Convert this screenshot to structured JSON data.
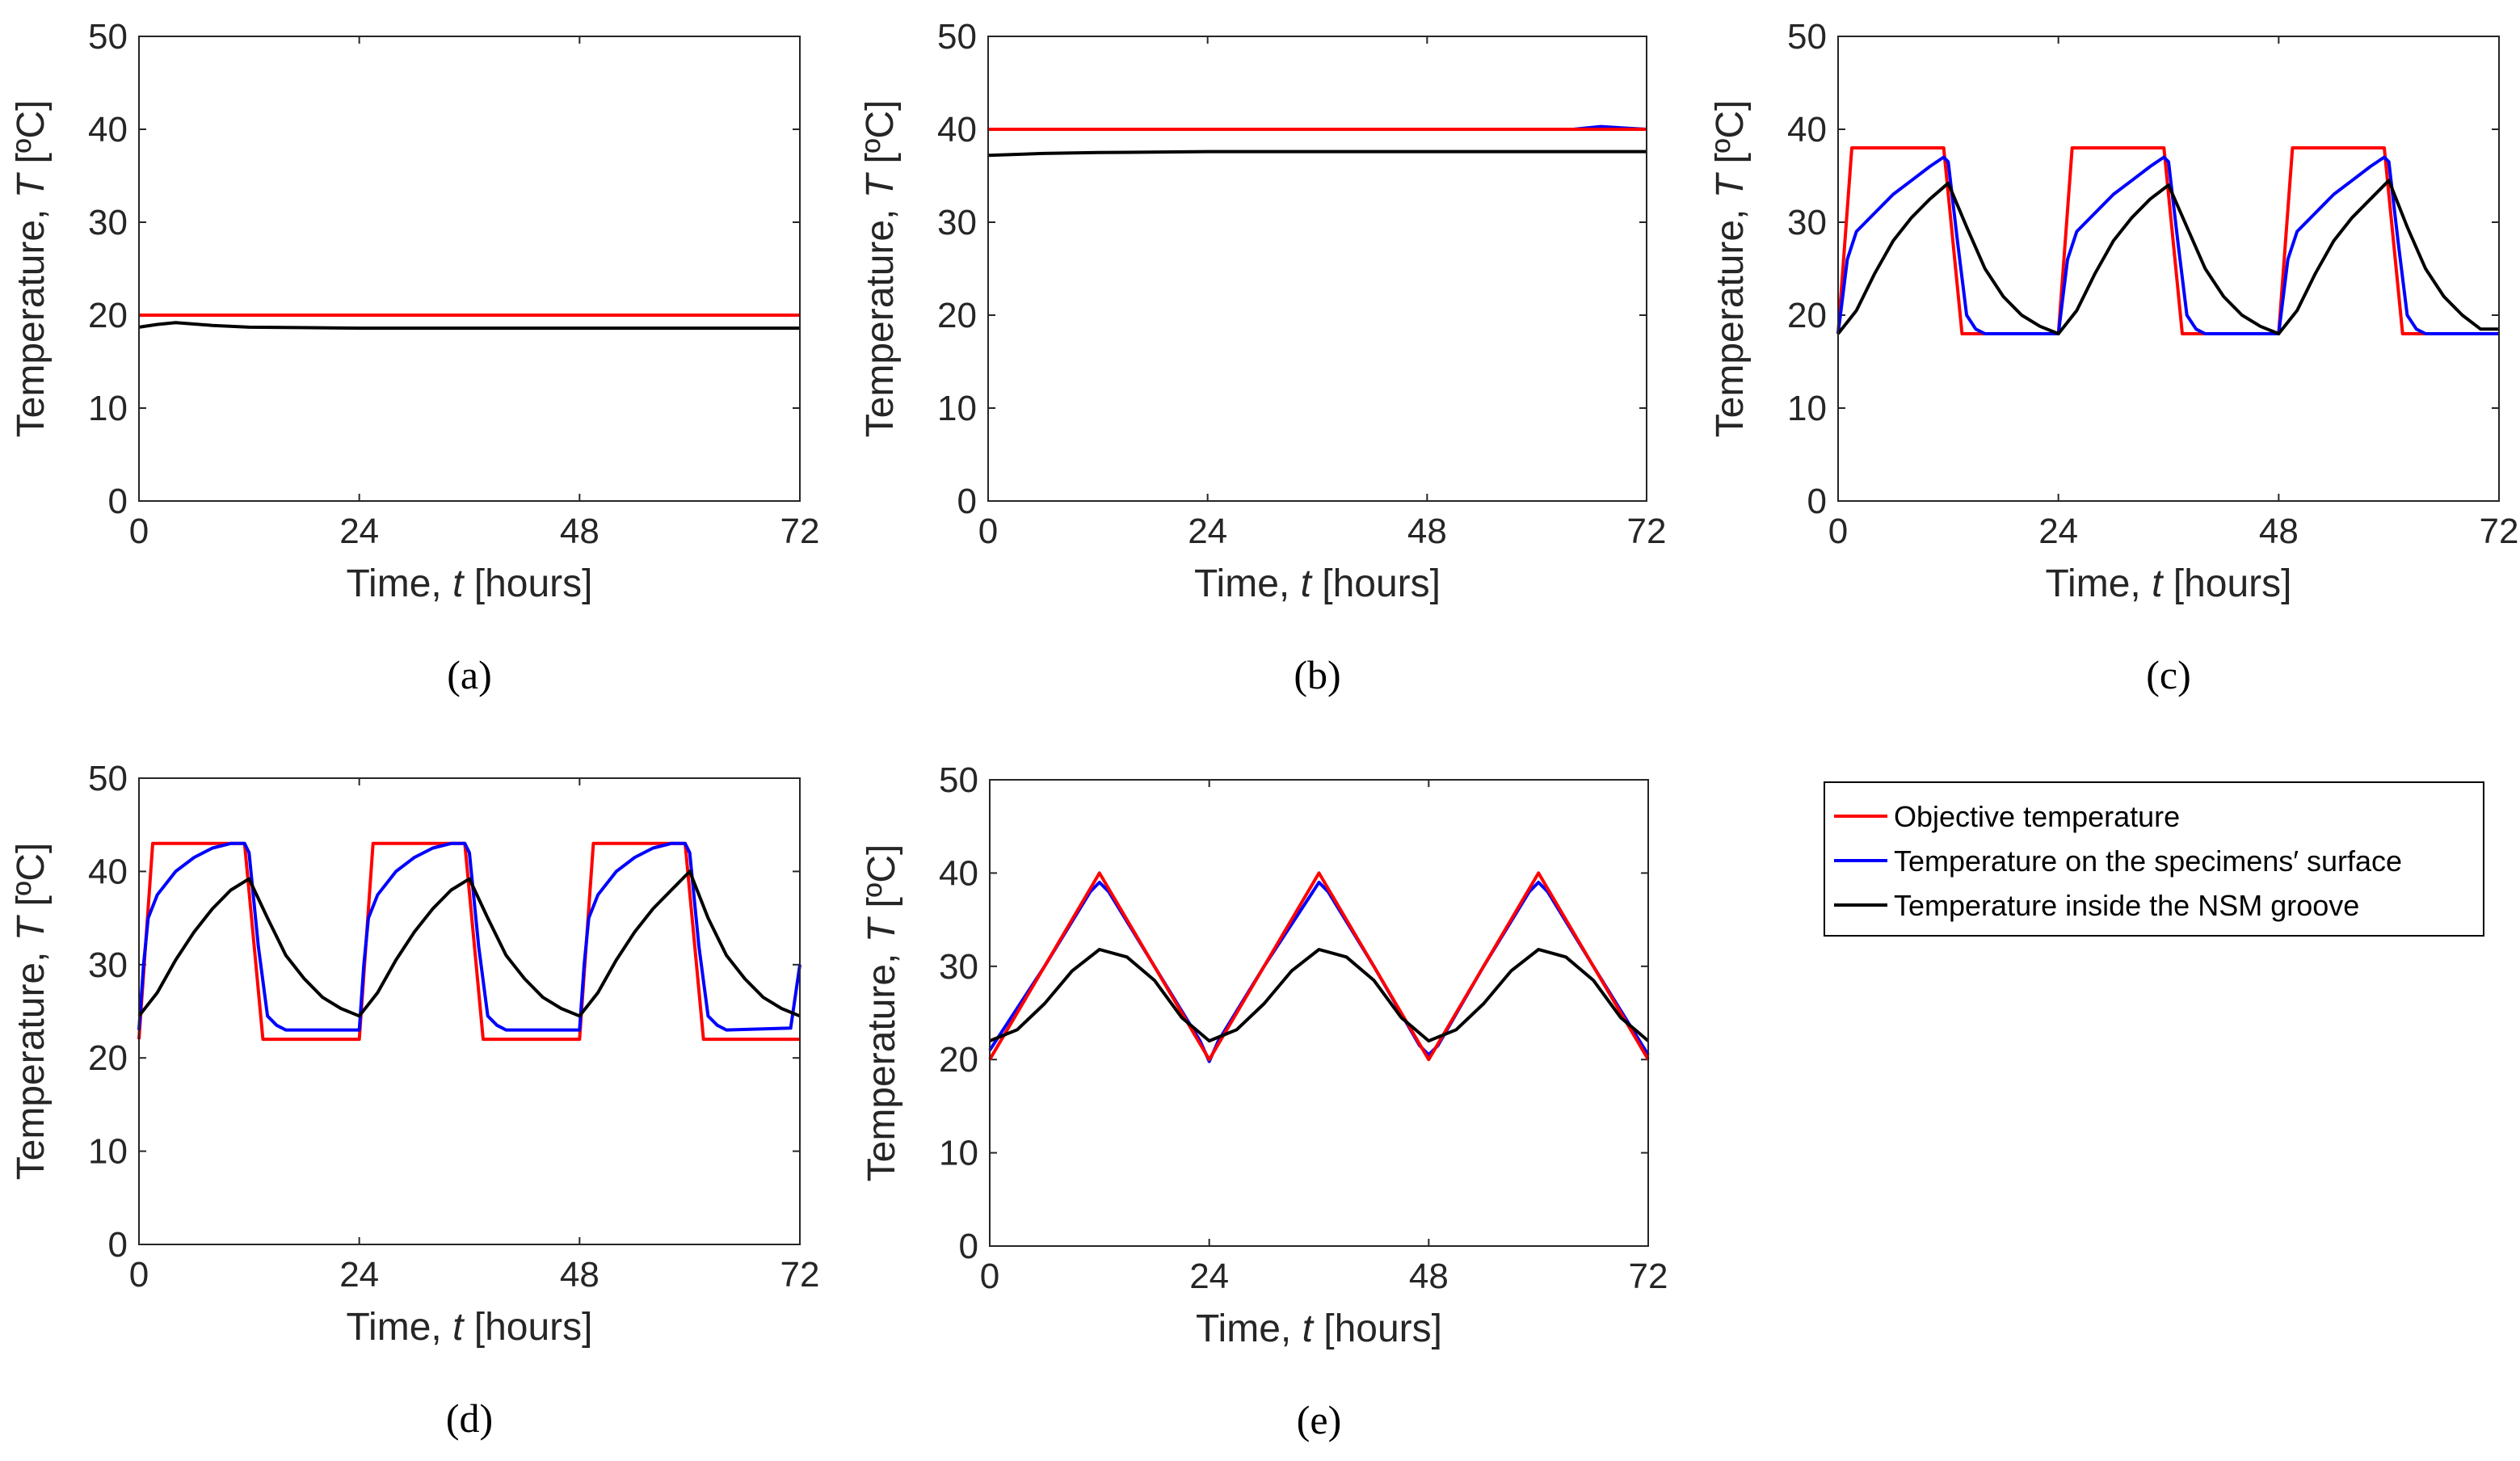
{
  "legend": {
    "items": [
      {
        "label": "Objective temperature",
        "color": "#ff0000"
      },
      {
        "label": "Temperature on the specimens′ surface",
        "color": "#0000ff"
      },
      {
        "label": "Temperature inside the NSM groove",
        "color": "#000000"
      }
    ]
  },
  "chart_data": [
    {
      "panel": "(a)",
      "type": "line",
      "xlabel": "Time, t [hours]",
      "ylabel": "Temperature, T [ºC]",
      "xlim": [
        0,
        72
      ],
      "ylim": [
        0,
        50
      ],
      "xticks": [
        0,
        24,
        48,
        72
      ],
      "yticks": [
        0,
        10,
        20,
        30,
        40,
        50
      ],
      "series": [
        {
          "name": "Temperature on the specimens′ surface",
          "color": "#0000ff",
          "x": [
            0,
            72
          ],
          "y": [
            20,
            20
          ]
        },
        {
          "name": "Objective temperature",
          "color": "#ff0000",
          "x": [
            0,
            72
          ],
          "y": [
            20,
            20
          ]
        },
        {
          "name": "Temperature inside the NSM groove",
          "color": "#000000",
          "x": [
            0,
            2,
            4,
            8,
            12,
            24,
            48,
            72
          ],
          "y": [
            18.7,
            19.0,
            19.2,
            18.9,
            18.7,
            18.6,
            18.6,
            18.6
          ]
        }
      ]
    },
    {
      "panel": "(b)",
      "type": "line",
      "xlabel": "Time, t [hours]",
      "ylabel": "Temperature, T [ºC]",
      "xlim": [
        0,
        72
      ],
      "ylim": [
        0,
        50
      ],
      "xticks": [
        0,
        24,
        48,
        72
      ],
      "yticks": [
        0,
        10,
        20,
        30,
        40,
        50
      ],
      "series": [
        {
          "name": "Temperature on the specimens′ surface",
          "color": "#0000ff",
          "x": [
            0,
            24,
            48,
            64,
            67,
            70,
            72
          ],
          "y": [
            40,
            40,
            40,
            40,
            40.3,
            40.1,
            40
          ]
        },
        {
          "name": "Objective temperature",
          "color": "#ff0000",
          "x": [
            0,
            72
          ],
          "y": [
            40,
            40
          ]
        },
        {
          "name": "Temperature inside the NSM groove",
          "color": "#000000",
          "x": [
            0,
            6,
            12,
            24,
            36,
            48,
            60,
            72
          ],
          "y": [
            37.2,
            37.4,
            37.5,
            37.6,
            37.6,
            37.6,
            37.6,
            37.6
          ]
        }
      ]
    },
    {
      "panel": "(c)",
      "type": "line",
      "xlabel": "Time, t [hours]",
      "ylabel": "Temperature, T [ºC]",
      "xlim": [
        0,
        72
      ],
      "ylim": [
        0,
        50
      ],
      "xticks": [
        0,
        24,
        48,
        72
      ],
      "yticks": [
        0,
        10,
        20,
        30,
        40,
        50
      ],
      "series": [
        {
          "name": "Objective temperature",
          "color": "#ff0000",
          "x": [
            0,
            1.5,
            11.5,
            13.5,
            24,
            25.5,
            35.5,
            37.5,
            48,
            49.5,
            59.5,
            61.5,
            72
          ],
          "y": [
            18,
            38,
            38,
            18,
            18,
            38,
            38,
            18,
            18,
            38,
            38,
            18,
            18
          ]
        },
        {
          "name": "Temperature on the specimens′ surface",
          "color": "#0000ff",
          "x": [
            0,
            0.5,
            1,
            2,
            4,
            6,
            8,
            10,
            11.5,
            12,
            13,
            14,
            15,
            16,
            24,
            24.5,
            25,
            26,
            28,
            30,
            32,
            34,
            35.5,
            36,
            37,
            38,
            39,
            40,
            48,
            48.5,
            49,
            50,
            52,
            54,
            56,
            58,
            59.5,
            60,
            61,
            62,
            63,
            64,
            72
          ],
          "y": [
            18,
            22,
            26,
            29,
            31,
            33,
            34.5,
            36,
            37,
            36.5,
            28,
            20,
            18.5,
            18,
            18,
            22,
            26,
            29,
            31,
            33,
            34.5,
            36,
            37,
            36.5,
            28,
            20,
            18.5,
            18,
            18,
            22,
            26,
            29,
            31,
            33,
            34.5,
            36,
            37,
            36.5,
            28,
            20,
            18.5,
            18,
            18
          ]
        },
        {
          "name": "Temperature inside the NSM groove",
          "color": "#000000",
          "x": [
            0,
            2,
            4,
            6,
            8,
            10,
            12,
            14,
            16,
            18,
            20,
            22,
            24,
            26,
            28,
            30,
            32,
            34,
            36,
            38,
            40,
            42,
            44,
            46,
            48,
            50,
            52,
            54,
            56,
            58,
            60,
            62,
            64,
            66,
            68,
            70,
            72
          ],
          "y": [
            18,
            20.5,
            24.5,
            28,
            30.5,
            32.5,
            34.2,
            29.5,
            25,
            22,
            20,
            18.8,
            18,
            20.5,
            24.5,
            28,
            30.5,
            32.5,
            34,
            29.5,
            25,
            22,
            20,
            18.8,
            18,
            20.5,
            24.5,
            28,
            30.5,
            32.5,
            34.5,
            29.5,
            25,
            22,
            20,
            18.5,
            18.5
          ]
        }
      ]
    },
    {
      "panel": "(d)",
      "type": "line",
      "xlabel": "Time, t [hours]",
      "ylabel": "Temperature, T [ºC]",
      "xlim": [
        0,
        72
      ],
      "ylim": [
        0,
        50
      ],
      "xticks": [
        0,
        24,
        48,
        72
      ],
      "yticks": [
        0,
        10,
        20,
        30,
        40,
        50
      ],
      "series": [
        {
          "name": "Objective temperature",
          "color": "#ff0000",
          "x": [
            0,
            1.5,
            11.5,
            13.5,
            24,
            25.5,
            35.5,
            37.5,
            48,
            49.5,
            59.5,
            61.5,
            72
          ],
          "y": [
            22,
            43,
            43,
            22,
            22,
            43,
            43,
            22,
            22,
            43,
            43,
            22,
            22
          ]
        },
        {
          "name": "Temperature on the specimens′ surface",
          "color": "#0000ff",
          "x": [
            0,
            0.5,
            1,
            2,
            4,
            6,
            8,
            10,
            11.5,
            12,
            13,
            14,
            15,
            16,
            24,
            24.5,
            25,
            26,
            28,
            30,
            32,
            34,
            35.5,
            36,
            37,
            38,
            39,
            40,
            48,
            48.5,
            49,
            50,
            52,
            54,
            56,
            58,
            59.5,
            60,
            61,
            62,
            63,
            64,
            71,
            72
          ],
          "y": [
            23,
            30,
            35,
            37.5,
            40,
            41.5,
            42.5,
            43,
            43,
            42,
            32,
            24.5,
            23.5,
            23,
            23,
            30,
            35,
            37.5,
            40,
            41.5,
            42.5,
            43,
            43,
            42,
            32,
            24.5,
            23.5,
            23,
            23,
            30,
            35,
            37.5,
            40,
            41.5,
            42.5,
            43,
            43,
            42,
            32,
            24.5,
            23.5,
            23,
            23.2,
            30
          ]
        },
        {
          "name": "Temperature inside the NSM groove",
          "color": "#000000",
          "x": [
            0,
            2,
            4,
            6,
            8,
            10,
            12,
            14,
            16,
            18,
            20,
            22,
            24,
            26,
            28,
            30,
            32,
            34,
            36,
            38,
            40,
            42,
            44,
            46,
            48,
            50,
            52,
            54,
            56,
            58,
            60,
            62,
            64,
            66,
            68,
            70,
            72
          ],
          "y": [
            24.5,
            27,
            30.5,
            33.5,
            36,
            38,
            39.2,
            35,
            31,
            28.5,
            26.5,
            25.3,
            24.5,
            27,
            30.5,
            33.5,
            36,
            38,
            39.2,
            35,
            31,
            28.5,
            26.5,
            25.3,
            24.5,
            27,
            30.5,
            33.5,
            36,
            38,
            40,
            35,
            31,
            28.5,
            26.5,
            25.3,
            24.5
          ]
        }
      ]
    },
    {
      "panel": "(e)",
      "type": "line",
      "xlabel": "Time, t [hours]",
      "ylabel": "Temperature, T [ºC]",
      "xlim": [
        0,
        72
      ],
      "ylim": [
        0,
        50
      ],
      "xticks": [
        0,
        24,
        48,
        72
      ],
      "yticks": [
        0,
        10,
        20,
        30,
        40,
        50
      ],
      "series": [
        {
          "name": "Temperature on the specimens′ surface",
          "color": "#0000ff",
          "x": [
            0,
            6,
            11,
            12,
            13,
            18,
            23,
            24,
            25,
            30,
            35,
            36,
            37,
            42,
            47,
            48,
            49,
            54,
            59,
            60,
            61,
            66,
            72
          ],
          "y": [
            21,
            30,
            38,
            39,
            38,
            30,
            22,
            19.8,
            22,
            30,
            37.5,
            39,
            38,
            30,
            21.5,
            20.5,
            21.5,
            30,
            38,
            39,
            38,
            30,
            20.5
          ]
        },
        {
          "name": "Objective temperature",
          "color": "#ff0000",
          "x": [
            0,
            12,
            24,
            36,
            48,
            60,
            72
          ],
          "y": [
            20,
            40,
            20,
            40,
            20,
            40,
            20
          ]
        },
        {
          "name": "Temperature inside the NSM groove",
          "color": "#000000",
          "x": [
            0,
            3,
            6,
            9,
            12,
            15,
            18,
            21,
            24,
            27,
            30,
            33,
            36,
            39,
            42,
            45,
            48,
            51,
            54,
            57,
            60,
            63,
            66,
            69,
            72
          ],
          "y": [
            22,
            23.2,
            26,
            29.5,
            31.8,
            31,
            28.5,
            24.5,
            22,
            23.2,
            26,
            29.5,
            31.8,
            31,
            28.5,
            24.5,
            22,
            23.2,
            26,
            29.5,
            31.8,
            31,
            28.5,
            24.5,
            22
          ]
        }
      ]
    }
  ]
}
